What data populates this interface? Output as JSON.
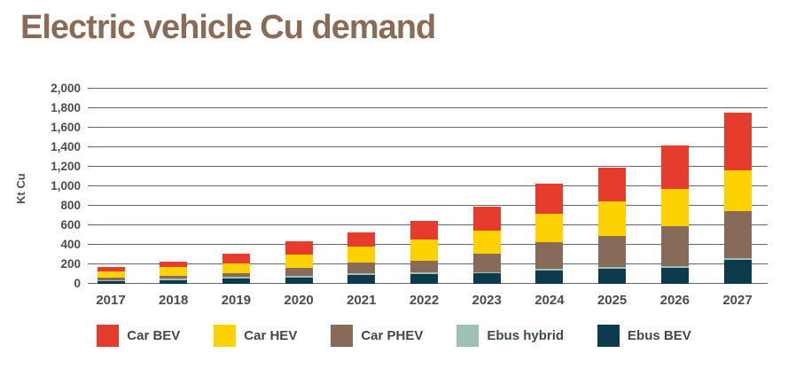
{
  "title": "Electric vehicle Cu demand",
  "chart_data": {
    "type": "bar",
    "stacked": true,
    "title": "Electric vehicle Cu demand",
    "xlabel": "",
    "ylabel": "Kt Cu",
    "ylim": [
      0,
      2000
    ],
    "grid": true,
    "legend_position": "bottom",
    "yticks": [
      {
        "value": 0,
        "label": "0"
      },
      {
        "value": 200,
        "label": "200"
      },
      {
        "value": 400,
        "label": "400"
      },
      {
        "value": 600,
        "label": "600"
      },
      {
        "value": 800,
        "label": "800"
      },
      {
        "value": 1000,
        "label": "1,000"
      },
      {
        "value": 1200,
        "label": "1,200"
      },
      {
        "value": 1400,
        "label": "1,400"
      },
      {
        "value": 1600,
        "label": "1,600"
      },
      {
        "value": 1800,
        "label": "1,800"
      },
      {
        "value": 2000,
        "label": "2,000"
      }
    ],
    "categories": [
      "2017",
      "2018",
      "2019",
      "2020",
      "2021",
      "2022",
      "2023",
      "2024",
      "2025",
      "2026",
      "2027"
    ],
    "series": [
      {
        "name": "Ebus BEV",
        "color": "#0c3b4d",
        "values": [
          25,
          40,
          55,
          65,
          90,
          100,
          105,
          135,
          155,
          160,
          250
        ]
      },
      {
        "name": "Ebus hybrid",
        "color": "#9dc2b4",
        "values": [
          15,
          15,
          20,
          20,
          20,
          20,
          15,
          20,
          20,
          20,
          15
        ]
      },
      {
        "name": "Car PHEV",
        "color": "#886a58",
        "values": [
          20,
          25,
          30,
          80,
          105,
          120,
          190,
          275,
          315,
          410,
          480
        ]
      },
      {
        "name": "Car HEV",
        "color": "#fdd200",
        "values": [
          65,
          90,
          100,
          135,
          170,
          215,
          240,
          290,
          355,
          380,
          420
        ]
      },
      {
        "name": "Car BEV",
        "color": "#e63c2e",
        "values": [
          50,
          60,
          105,
          140,
          145,
          190,
          245,
          310,
          345,
          450,
          590
        ]
      }
    ],
    "legend_items": [
      "Car BEV",
      "Car HEV",
      "Car PHEV",
      "Ebus hybrid",
      "Ebus BEV"
    ],
    "totals": [
      175,
      230,
      310,
      440,
      530,
      645,
      795,
      1030,
      1190,
      1420,
      1755
    ]
  },
  "colors": {
    "title": "#8a6b56",
    "axis_text": "#4c4c4c",
    "gridline": "#5c6a73",
    "car_bev": "#e63c2e",
    "car_hev": "#fdd200",
    "car_phev": "#886a58",
    "ebus_hybrid": "#9dc2b4",
    "ebus_bev": "#0c3b4d"
  }
}
